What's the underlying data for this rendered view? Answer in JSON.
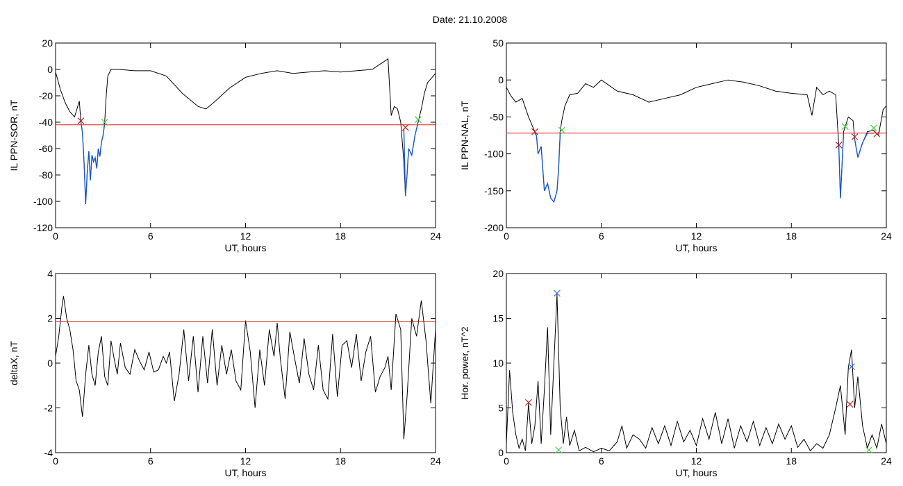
{
  "figure": {
    "title": "Date:  21.10.2008"
  },
  "chart_data": [
    {
      "type": "line",
      "xlabel": "UT, hours",
      "ylabel": "IL PPN-SOR, nT",
      "xlim": [
        0,
        24
      ],
      "ylim": [
        -120,
        20
      ],
      "xticks": [
        0,
        6,
        12,
        18,
        24
      ],
      "yticks": [
        20,
        0,
        -20,
        -40,
        -60,
        -80,
        -100,
        -120
      ],
      "threshold": {
        "value": -42,
        "color": "#e0201c"
      },
      "series": [
        {
          "color": "#000000",
          "x": [
            0,
            0.3,
            0.6,
            0.9,
            1.2,
            1.5,
            1.6,
            1.7,
            1.8,
            1.9,
            2.0,
            2.1,
            2.2,
            2.3,
            2.4,
            2.5,
            2.6,
            2.7,
            2.8,
            2.9,
            3.0,
            3.1,
            3.2,
            3.3,
            3.5,
            4,
            5,
            6,
            7,
            8,
            9,
            9.5,
            10,
            11,
            12,
            13,
            14,
            15,
            16,
            17,
            18,
            19,
            20,
            21.0,
            21.2,
            21.4,
            21.6,
            21.8,
            22.0,
            22.1,
            22.2,
            22.3,
            22.5,
            22.7,
            22.9,
            23.1,
            23.3,
            23.5,
            24
          ],
          "y": [
            -2,
            -15,
            -25,
            -32,
            -36,
            -24,
            -40,
            -48,
            -70,
            -102,
            -78,
            -62,
            -84,
            -65,
            -70,
            -67,
            -75,
            -60,
            -66,
            -55,
            -50,
            -40,
            -20,
            -5,
            0,
            0,
            -1,
            -1,
            -5,
            -18,
            -28,
            -30,
            -25,
            -14,
            -6,
            -3,
            -1,
            -3,
            -2,
            -1,
            -2,
            -1,
            0,
            8,
            -35,
            -28,
            -30,
            -40,
            -70,
            -96,
            -80,
            -60,
            -65,
            -50,
            -40,
            -30,
            -18,
            -10,
            -3
          ]
        },
        {
          "color": "#1a55d6",
          "x": [
            1.6,
            1.7,
            1.8,
            1.9,
            2.0,
            2.1,
            2.2,
            2.3,
            2.4,
            2.5,
            2.6,
            2.7,
            2.8,
            2.9,
            3.0,
            3.1
          ],
          "y": [
            -40,
            -48,
            -70,
            -102,
            -78,
            -62,
            -84,
            -65,
            -70,
            -67,
            -75,
            -60,
            -66,
            -55,
            -50,
            -41
          ]
        },
        {
          "color": "#1a55d6",
          "x": [
            22.0,
            22.1,
            22.2,
            22.3,
            22.5,
            22.7,
            22.9
          ],
          "y": [
            -45,
            -96,
            -80,
            -60,
            -65,
            -50,
            -40
          ]
        }
      ],
      "markers": [
        {
          "x": 1.6,
          "y": -39,
          "color": "#c81e1e"
        },
        {
          "x": 3.1,
          "y": -40,
          "color": "#3fd13f"
        },
        {
          "x": 22.1,
          "y": -44,
          "color": "#c81e1e"
        },
        {
          "x": 22.9,
          "y": -38,
          "color": "#3fd13f"
        }
      ]
    },
    {
      "type": "line",
      "xlabel": "UT, hours",
      "ylabel": "IL PPN-NAL, nT",
      "xlim": [
        0,
        24
      ],
      "ylim": [
        -200,
        50
      ],
      "xticks": [
        0,
        6,
        12,
        18,
        24
      ],
      "yticks": [
        50,
        0,
        -50,
        -100,
        -150,
        -200
      ],
      "threshold": {
        "value": -72,
        "color": "#e0201c"
      },
      "series": [
        {
          "color": "#000000",
          "x": [
            0,
            0.3,
            0.6,
            1.0,
            1.4,
            1.8,
            1.9,
            2.0,
            2.2,
            2.4,
            2.6,
            2.8,
            3.0,
            3.2,
            3.3,
            3.4,
            3.5,
            3.7,
            4.0,
            4.5,
            5,
            5.5,
            6,
            7,
            8,
            9,
            10,
            11,
            12,
            13,
            14,
            15,
            16,
            17,
            18,
            19,
            19.3,
            19.6,
            20,
            20.4,
            20.8,
            21.0,
            21.1,
            21.3,
            21.6,
            21.9,
            22.0,
            22.2,
            22.5,
            22.8,
            23.2,
            23.5,
            23.8,
            24
          ],
          "y": [
            -10,
            -22,
            -30,
            -25,
            -50,
            -70,
            -75,
            -100,
            -90,
            -150,
            -140,
            -160,
            -165,
            -150,
            -120,
            -70,
            -55,
            -35,
            -20,
            -18,
            -5,
            -10,
            0,
            -15,
            -20,
            -30,
            -25,
            -20,
            -10,
            -5,
            0,
            -3,
            -8,
            -15,
            -18,
            -20,
            -48,
            -10,
            -20,
            -15,
            -20,
            -90,
            -160,
            -70,
            -50,
            -55,
            -80,
            -105,
            -85,
            -70,
            -68,
            -75,
            -40,
            -35
          ]
        },
        {
          "color": "#1a55d6",
          "x": [
            1.8,
            1.9,
            2.0,
            2.2,
            2.4,
            2.6,
            2.8,
            3.0,
            3.2,
            3.3,
            3.4
          ],
          "y": [
            -72,
            -75,
            -100,
            -90,
            -150,
            -140,
            -160,
            -165,
            -150,
            -120,
            -72
          ]
        },
        {
          "color": "#1a55d6",
          "x": [
            21.0,
            21.1,
            21.3
          ],
          "y": [
            -90,
            -160,
            -72
          ]
        },
        {
          "color": "#1a55d6",
          "x": [
            22.0,
            22.2,
            22.5,
            22.8,
            23.2
          ],
          "y": [
            -80,
            -105,
            -85,
            -72,
            -72
          ]
        }
      ],
      "markers": [
        {
          "x": 1.8,
          "y": -70,
          "color": "#c81e1e"
        },
        {
          "x": 3.5,
          "y": -68,
          "color": "#3fd13f"
        },
        {
          "x": 21.0,
          "y": -88,
          "color": "#c81e1e"
        },
        {
          "x": 21.4,
          "y": -63,
          "color": "#3fd13f"
        },
        {
          "x": 22.0,
          "y": -77,
          "color": "#c81e1e"
        },
        {
          "x": 23.2,
          "y": -65,
          "color": "#3fd13f"
        },
        {
          "x": 23.4,
          "y": -73,
          "color": "#c81e1e"
        }
      ]
    },
    {
      "type": "line",
      "xlabel": "UT, hours",
      "ylabel": "deltaX, nT",
      "xlim": [
        0,
        24
      ],
      "ylim": [
        -4,
        4
      ],
      "xticks": [
        0,
        6,
        12,
        18,
        24
      ],
      "yticks": [
        4,
        2,
        0,
        -2,
        -4
      ],
      "threshold": {
        "value": 1.85,
        "color": "#e0201c"
      },
      "series": [
        {
          "color": "#000000",
          "x": [
            0,
            0.2,
            0.4,
            0.5,
            0.7,
            0.9,
            1.1,
            1.3,
            1.5,
            1.7,
            1.9,
            2.1,
            2.3,
            2.5,
            2.7,
            2.9,
            3.1,
            3.3,
            3.5,
            3.7,
            3.9,
            4.1,
            4.4,
            4.7,
            5.0,
            5.3,
            5.6,
            5.9,
            6.2,
            6.5,
            6.8,
            7.0,
            7.2,
            7.5,
            7.8,
            8.1,
            8.4,
            8.7,
            9.0,
            9.3,
            9.6,
            9.9,
            10.2,
            10.5,
            10.8,
            11.1,
            11.4,
            11.7,
            12.0,
            12.3,
            12.6,
            12.9,
            13.2,
            13.5,
            13.8,
            14.0,
            14.2,
            14.5,
            14.8,
            15.1,
            15.4,
            15.7,
            16.0,
            16.3,
            16.6,
            16.9,
            17.2,
            17.5,
            17.8,
            18.1,
            18.4,
            18.7,
            19.0,
            19.3,
            19.6,
            19.9,
            20.2,
            20.5,
            20.8,
            21.0,
            21.2,
            21.5,
            21.8,
            22.0,
            22.2,
            22.5,
            22.8,
            23.1,
            23.4,
            23.7,
            24
          ],
          "y": [
            0.3,
            1.2,
            2.5,
            3.0,
            2.0,
            1.5,
            0.6,
            -0.8,
            -1.2,
            -2.4,
            -0.5,
            0.8,
            -0.5,
            -1.0,
            0.5,
            1.2,
            -0.6,
            -1.0,
            1.0,
            0.2,
            -0.5,
            0.9,
            -0.2,
            -0.5,
            0.6,
            0.1,
            -0.3,
            0.5,
            -0.4,
            -0.3,
            0.3,
            0.0,
            0.5,
            -1.7,
            -0.5,
            1.5,
            -0.8,
            1.2,
            -1.3,
            1.2,
            -0.9,
            1.5,
            -1.0,
            0.8,
            -0.5,
            0.6,
            -0.8,
            -1.2,
            1.9,
            0.5,
            -2.0,
            0.6,
            -1.0,
            1.5,
            0.3,
            1.8,
            0.2,
            -1.6,
            1.4,
            0.2,
            -0.9,
            1.1,
            -0.5,
            -1.2,
            0.8,
            -1.2,
            -1.6,
            1.3,
            -1.5,
            0.8,
            1.0,
            -0.2,
            1.3,
            -0.8,
            0.5,
            1.2,
            -1.3,
            -0.6,
            -0.2,
            0.3,
            -1.2,
            2.2,
            1.5,
            -3.4,
            -1.5,
            2.0,
            1.2,
            2.8,
            1.0,
            -1.8,
            1.5
          ]
        }
      ],
      "markers": []
    },
    {
      "type": "line",
      "xlabel": "UT, hours",
      "ylabel": "Hor. power, nT^2",
      "xlim": [
        0,
        24
      ],
      "ylim": [
        0,
        20
      ],
      "xticks": [
        0,
        6,
        12,
        18,
        24
      ],
      "yticks": [
        20,
        15,
        10,
        5,
        0
      ],
      "threshold": null,
      "series": [
        {
          "color": "#000000",
          "x": [
            0,
            0.2,
            0.4,
            0.6,
            0.8,
            1.0,
            1.2,
            1.4,
            1.6,
            1.8,
            2.0,
            2.2,
            2.4,
            2.6,
            2.8,
            3.0,
            3.2,
            3.4,
            3.6,
            3.8,
            4.0,
            4.3,
            4.6,
            5.0,
            5.5,
            6.0,
            6.5,
            7.0,
            7.3,
            7.6,
            8.0,
            8.4,
            8.8,
            9.2,
            9.6,
            10.0,
            10.4,
            10.8,
            11.2,
            11.6,
            12.0,
            12.4,
            12.8,
            13.2,
            13.6,
            14.0,
            14.4,
            14.8,
            15.2,
            15.6,
            16.0,
            16.4,
            16.8,
            17.2,
            17.6,
            18.0,
            18.4,
            18.8,
            19.2,
            19.6,
            20.0,
            20.4,
            20.8,
            21.1,
            21.4,
            21.6,
            21.8,
            22.0,
            22.2,
            22.5,
            22.8,
            23.1,
            23.4,
            23.7,
            24
          ],
          "y": [
            1.0,
            9.2,
            4.5,
            2.0,
            0.5,
            1.5,
            0.2,
            5.5,
            1.0,
            3.0,
            8.0,
            1.0,
            7.0,
            14.0,
            2.0,
            10.0,
            17.7,
            5.0,
            1.0,
            4.0,
            0.8,
            2.5,
            0.2,
            0.6,
            0.1,
            0.5,
            0.2,
            1.2,
            3.0,
            0.5,
            2.0,
            1.5,
            0.5,
            2.8,
            1.0,
            3.0,
            0.8,
            3.5,
            1.2,
            2.5,
            0.8,
            3.8,
            1.5,
            4.5,
            1.0,
            3.8,
            0.5,
            3.0,
            1.2,
            3.5,
            0.8,
            2.8,
            1.0,
            3.2,
            1.5,
            3.0,
            0.6,
            1.5,
            0.2,
            1.0,
            0.5,
            2.0,
            5.0,
            7.5,
            2.0,
            9.5,
            11.5,
            5.0,
            8.5,
            3.0,
            0.5,
            2.0,
            0.5,
            3.2,
            1.0
          ]
        }
      ],
      "markers": [
        {
          "x": 1.4,
          "y": 5.6,
          "color": "#c81e1e"
        },
        {
          "x": 3.2,
          "y": 17.8,
          "color": "#2f6fd6"
        },
        {
          "x": 3.3,
          "y": 0.3,
          "color": "#3fd13f"
        },
        {
          "x": 21.8,
          "y": 9.6,
          "color": "#2f6fd6"
        },
        {
          "x": 21.7,
          "y": 5.4,
          "color": "#c81e1e"
        },
        {
          "x": 22.9,
          "y": 0.3,
          "color": "#3fd13f"
        }
      ]
    }
  ]
}
